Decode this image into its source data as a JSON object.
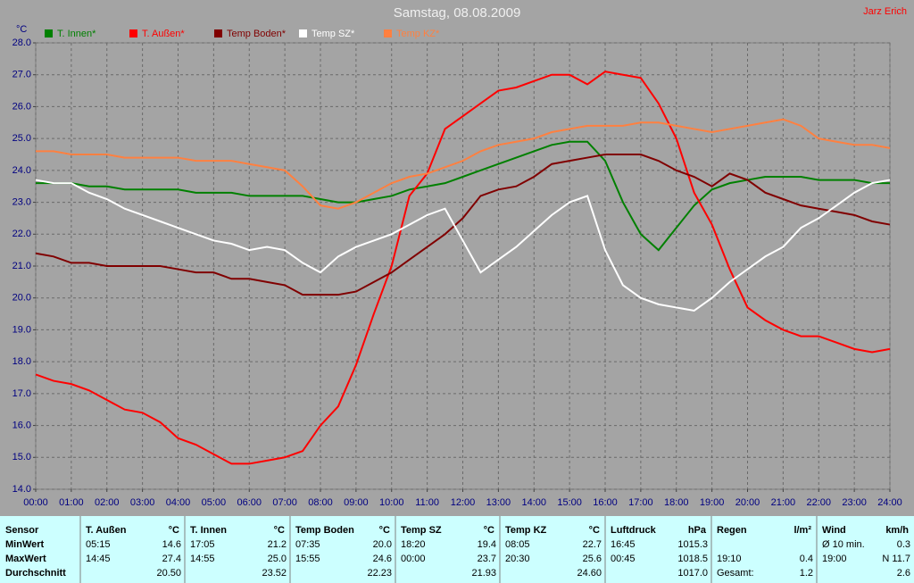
{
  "chart_data": {
    "type": "line",
    "title": "Samstag, 08.08.2009",
    "author": "Jarz Erich",
    "y_label": "°C",
    "x": [
      0,
      0.5,
      1,
      1.5,
      2,
      2.5,
      3,
      3.5,
      4,
      4.5,
      5,
      5.5,
      6,
      6.5,
      7,
      7.5,
      8,
      8.5,
      9,
      9.5,
      10,
      10.5,
      11,
      11.5,
      12,
      12.5,
      13,
      13.5,
      14,
      14.5,
      15,
      15.5,
      16,
      16.5,
      17,
      17.5,
      18,
      18.5,
      19,
      19.5,
      20,
      20.5,
      21,
      21.5,
      22,
      22.5,
      23,
      23.5,
      24
    ],
    "series": [
      {
        "name": "T. Innen*",
        "color": "#008000",
        "values": [
          23.6,
          23.6,
          23.6,
          23.5,
          23.5,
          23.4,
          23.4,
          23.4,
          23.4,
          23.3,
          23.3,
          23.3,
          23.2,
          23.2,
          23.2,
          23.2,
          23.1,
          23.0,
          23.0,
          23.1,
          23.2,
          23.4,
          23.5,
          23.6,
          23.8,
          24.0,
          24.2,
          24.4,
          24.6,
          24.8,
          24.9,
          24.9,
          24.3,
          23.0,
          22.0,
          21.5,
          22.2,
          22.9,
          23.4,
          23.6,
          23.7,
          23.8,
          23.8,
          23.8,
          23.7,
          23.7,
          23.7,
          23.6,
          23.6
        ]
      },
      {
        "name": "T. Außen*",
        "color": "#ff0000",
        "values": [
          17.6,
          17.4,
          17.3,
          17.1,
          16.8,
          16.5,
          16.4,
          16.1,
          15.6,
          15.4,
          15.1,
          14.8,
          14.8,
          14.9,
          15.0,
          15.2,
          16.0,
          16.6,
          17.9,
          19.5,
          21.0,
          23.2,
          23.9,
          25.3,
          25.7,
          26.1,
          26.5,
          26.6,
          26.8,
          27.0,
          27.0,
          26.7,
          27.1,
          27.0,
          26.9,
          26.1,
          25.0,
          23.3,
          22.3,
          20.9,
          19.7,
          19.3,
          19.0,
          18.8,
          18.8,
          18.6,
          18.4,
          18.3,
          18.4
        ]
      },
      {
        "name": "Temp Boden*",
        "color": "#800000",
        "values": [
          21.4,
          21.3,
          21.1,
          21.1,
          21.0,
          21.0,
          21.0,
          21.0,
          20.9,
          20.8,
          20.8,
          20.6,
          20.6,
          20.5,
          20.4,
          20.1,
          20.1,
          20.1,
          20.2,
          20.5,
          20.8,
          21.2,
          21.6,
          22.0,
          22.5,
          23.2,
          23.4,
          23.5,
          23.8,
          24.2,
          24.3,
          24.4,
          24.5,
          24.5,
          24.5,
          24.3,
          24.0,
          23.8,
          23.5,
          23.9,
          23.7,
          23.3,
          23.1,
          22.9,
          22.8,
          22.7,
          22.6,
          22.4,
          22.3
        ]
      },
      {
        "name": "Temp SZ*",
        "color": "#ffffff",
        "values": [
          23.7,
          23.6,
          23.6,
          23.3,
          23.1,
          22.8,
          22.6,
          22.4,
          22.2,
          22.0,
          21.8,
          21.7,
          21.5,
          21.6,
          21.5,
          21.1,
          20.8,
          21.3,
          21.6,
          21.8,
          22.0,
          22.3,
          22.6,
          22.8,
          21.8,
          20.8,
          21.2,
          21.6,
          22.1,
          22.6,
          23.0,
          23.2,
          21.5,
          20.4,
          20.0,
          19.8,
          19.7,
          19.6,
          20.0,
          20.5,
          20.9,
          21.3,
          21.6,
          22.2,
          22.5,
          22.9,
          23.3,
          23.6,
          23.7
        ]
      },
      {
        "name": "Temp KZ*",
        "color": "#ff8040",
        "values": [
          24.6,
          24.6,
          24.5,
          24.5,
          24.5,
          24.4,
          24.4,
          24.4,
          24.4,
          24.3,
          24.3,
          24.3,
          24.2,
          24.1,
          24.0,
          23.5,
          22.9,
          22.8,
          23.0,
          23.3,
          23.6,
          23.8,
          23.9,
          24.1,
          24.3,
          24.6,
          24.8,
          24.9,
          25.0,
          25.2,
          25.3,
          25.4,
          25.4,
          25.4,
          25.5,
          25.5,
          25.4,
          25.3,
          25.2,
          25.3,
          25.4,
          25.5,
          25.6,
          25.4,
          25.0,
          24.9,
          24.8,
          24.8,
          24.7
        ]
      }
    ],
    "xlim": [
      0,
      24
    ],
    "xticks": [
      {
        "value": 0,
        "label": "00:00"
      },
      {
        "value": 1,
        "label": "01:00"
      },
      {
        "value": 2,
        "label": "02:00"
      },
      {
        "value": 3,
        "label": "03:00"
      },
      {
        "value": 4,
        "label": "04:00"
      },
      {
        "value": 5,
        "label": "05:00"
      },
      {
        "value": 6,
        "label": "06:00"
      },
      {
        "value": 7,
        "label": "07:00"
      },
      {
        "value": 8,
        "label": "08:00"
      },
      {
        "value": 9,
        "label": "09:00"
      },
      {
        "value": 10,
        "label": "10:00"
      },
      {
        "value": 11,
        "label": "11:00"
      },
      {
        "value": 12,
        "label": "12:00"
      },
      {
        "value": 13,
        "label": "13:00"
      },
      {
        "value": 14,
        "label": "14:00"
      },
      {
        "value": 15,
        "label": "15:00"
      },
      {
        "value": 16,
        "label": "16:00"
      },
      {
        "value": 17,
        "label": "17:00"
      },
      {
        "value": 18,
        "label": "18:00"
      },
      {
        "value": 19,
        "label": "19:00"
      },
      {
        "value": 20,
        "label": "20:00"
      },
      {
        "value": 21,
        "label": "21:00"
      },
      {
        "value": 22,
        "label": "22:00"
      },
      {
        "value": 23,
        "label": "23:00"
      },
      {
        "value": 24,
        "label": "24:00"
      }
    ],
    "ylim": [
      14,
      28
    ],
    "yticks": [
      {
        "value": 14,
        "label": "14.0"
      },
      {
        "value": 15,
        "label": "15.0"
      },
      {
        "value": 16,
        "label": "16.0"
      },
      {
        "value": 17,
        "label": "17.0"
      },
      {
        "value": 18,
        "label": "18.0"
      },
      {
        "value": 19,
        "label": "19.0"
      },
      {
        "value": 20,
        "label": "20.0"
      },
      {
        "value": 21,
        "label": "21.0"
      },
      {
        "value": 22,
        "label": "22.0"
      },
      {
        "value": 23,
        "label": "23.0"
      },
      {
        "value": 24,
        "label": "24.0"
      },
      {
        "value": 25,
        "label": "25.0"
      },
      {
        "value": 26,
        "label": "26.0"
      },
      {
        "value": 27,
        "label": "27.0"
      },
      {
        "value": 28,
        "label": "28.0"
      }
    ],
    "grid": true
  },
  "table": {
    "corner": "Sensor",
    "row_labels": [
      "MinWert",
      "MaxWert",
      "Durchschnitt"
    ],
    "columns": [
      {
        "name": "T. Außen",
        "unit": "°C",
        "rows": [
          [
            "05:15",
            "14.6"
          ],
          [
            "14:45",
            "27.4"
          ],
          [
            null,
            "20.50"
          ]
        ]
      },
      {
        "name": "T. Innen",
        "unit": "°C",
        "rows": [
          [
            "17:05",
            "21.2"
          ],
          [
            "14:55",
            "25.0"
          ],
          [
            null,
            "23.52"
          ]
        ]
      },
      {
        "name": "Temp Boden",
        "unit": "°C",
        "rows": [
          [
            "07:35",
            "20.0"
          ],
          [
            "15:55",
            "24.6"
          ],
          [
            null,
            "22.23"
          ]
        ]
      },
      {
        "name": "Temp SZ",
        "unit": "°C",
        "rows": [
          [
            "18:20",
            "19.4"
          ],
          [
            "00:00",
            "23.7"
          ],
          [
            null,
            "21.93"
          ]
        ]
      },
      {
        "name": "Temp KZ",
        "unit": "°C",
        "rows": [
          [
            "08:05",
            "22.7"
          ],
          [
            "20:30",
            "25.6"
          ],
          [
            null,
            "24.60"
          ]
        ]
      },
      {
        "name": "Luftdruck",
        "unit": "hPa",
        "rows": [
          [
            "16:45",
            "1015.3"
          ],
          [
            "00:45",
            "1018.5"
          ],
          [
            null,
            "1017.0"
          ]
        ]
      },
      {
        "name": "Regen",
        "unit": "l/m²",
        "rows": [
          [
            null,
            null
          ],
          [
            "19:10",
            "0.4"
          ],
          [
            "Gesamt:",
            "1.2"
          ]
        ]
      },
      {
        "name": "Wind",
        "unit": "km/h",
        "rows": [
          [
            "Ø 10 min.",
            "0.3"
          ],
          [
            "19:00",
            "N 11.7"
          ],
          [
            null,
            "2.6"
          ]
        ]
      }
    ]
  }
}
